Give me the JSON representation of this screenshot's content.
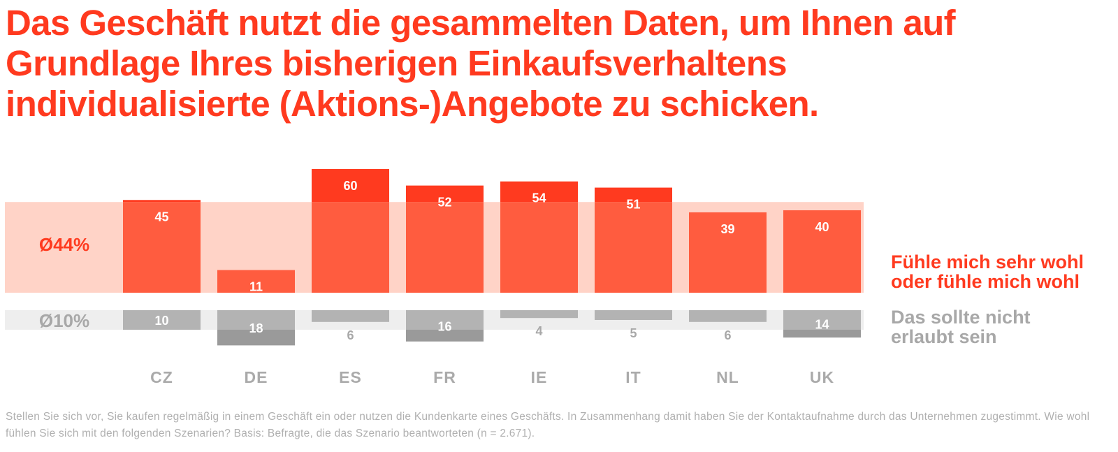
{
  "title": "Das Geschäft nutzt die gesammelten Daten, um Ihnen auf Grundlage Ihres bisherigen Einkaufsverhaltens individualisierte (Aktions-)Angebote zu schicken.",
  "footnote": "Stellen Sie sich vor, Sie kaufen regelmäßig in einem Geschäft ein oder nutzen die Kundenkarte eines Geschäfts. In Zusammenhang damit haben Sie der Kontaktaufnahme durch das Unternehmen zugestimmt. Wie wohl fühlen Sie sich mit den folgenden Szenarien? Basis: Befragte, die das Szenario beantworteten (n = 2.671).",
  "colors": {
    "title": "#ff3a1f",
    "positive_bar": "#ff5c3f",
    "positive_bar_above_avg": "#ff3a1f",
    "positive_avg_band": "#ffd3c7",
    "positive_avg_text": "#ff3a1f",
    "negative_bar": "#b3b3b3",
    "negative_bar_below_avg": "#9a9a9a",
    "negative_avg_band": "#eeeeee",
    "negative_avg_text": "#a8a8a8",
    "category_label": "#aaaaaa",
    "footnote": "#b0b0b0"
  },
  "chart_data": {
    "type": "bar",
    "categories": [
      "CZ",
      "DE",
      "ES",
      "FR",
      "IE",
      "IT",
      "NL",
      "UK"
    ],
    "series": [
      {
        "name": "Fühle mich sehr wohl oder fühle mich wohl",
        "values": [
          45,
          11,
          60,
          52,
          54,
          51,
          39,
          40
        ],
        "average": 44,
        "average_label": "Ø44%"
      },
      {
        "name": "Das sollte nicht erlaubt sein",
        "values": [
          10,
          18,
          6,
          16,
          4,
          5,
          6,
          14
        ],
        "average": 10,
        "average_label": "Ø10%"
      }
    ],
    "positive_direction": "up",
    "negative_direction": "down",
    "grid": false,
    "legend_placement": "right"
  }
}
